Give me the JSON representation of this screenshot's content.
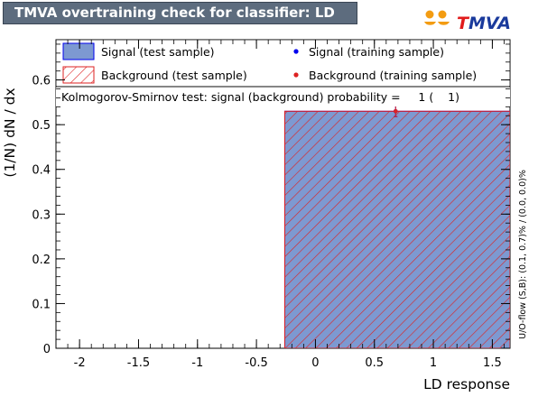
{
  "title": "TMVA overtraining check for classifier: LD",
  "logo": {
    "text": "TMVA",
    "first_letter_color": "#e11b1b",
    "rest_color": "#1a3a9c",
    "dots_color": "#f39c12"
  },
  "colors": {
    "signal_fill": "#7d99d1",
    "signal_line": "#0000ee",
    "background_hatch": "#dd2222",
    "signal_marker": "#0000ee",
    "background_marker": "#dd2222"
  },
  "legend": {
    "signal_test": "Signal (test sample)",
    "background_test": "Background (test sample)",
    "signal_train": "Signal (training sample)",
    "background_train": "Background (training sample)"
  },
  "ks_text": "Kolmogorov-Smirnov test: signal (background) probability =     1 (    1)",
  "overflow_text": "U/O-flow (S,B): (0.1, 0.7)% / (0.0, 0.0)%",
  "chart_data": {
    "type": "bar",
    "xlabel": "LD response",
    "ylabel": "(1/N) dN / dx",
    "xlim": [
      -2.2,
      1.65
    ],
    "ylim": [
      0,
      0.69
    ],
    "x_ticks": [
      "-2",
      "-1.5",
      "-1",
      "-0.5",
      "0",
      "0.5",
      "1",
      "1.5"
    ],
    "y_ticks": [
      "0",
      "0.1",
      "0.2",
      "0.3",
      "0.4",
      "0.5",
      "0.6"
    ],
    "series": [
      {
        "name": "Signal (test sample)",
        "style": "filled",
        "bins": [
          [
            -0.26,
            1.65,
            0.53
          ]
        ]
      },
      {
        "name": "Background (test sample)",
        "style": "hatched",
        "bins": [
          [
            -0.26,
            1.65,
            0.53
          ]
        ]
      },
      {
        "name": "Signal (training sample)",
        "style": "marker",
        "points": [
          [
            0.68,
            0.53,
            0.012
          ]
        ]
      },
      {
        "name": "Background (training sample)",
        "style": "marker",
        "points": [
          [
            0.68,
            0.53,
            0.012
          ]
        ]
      }
    ]
  }
}
